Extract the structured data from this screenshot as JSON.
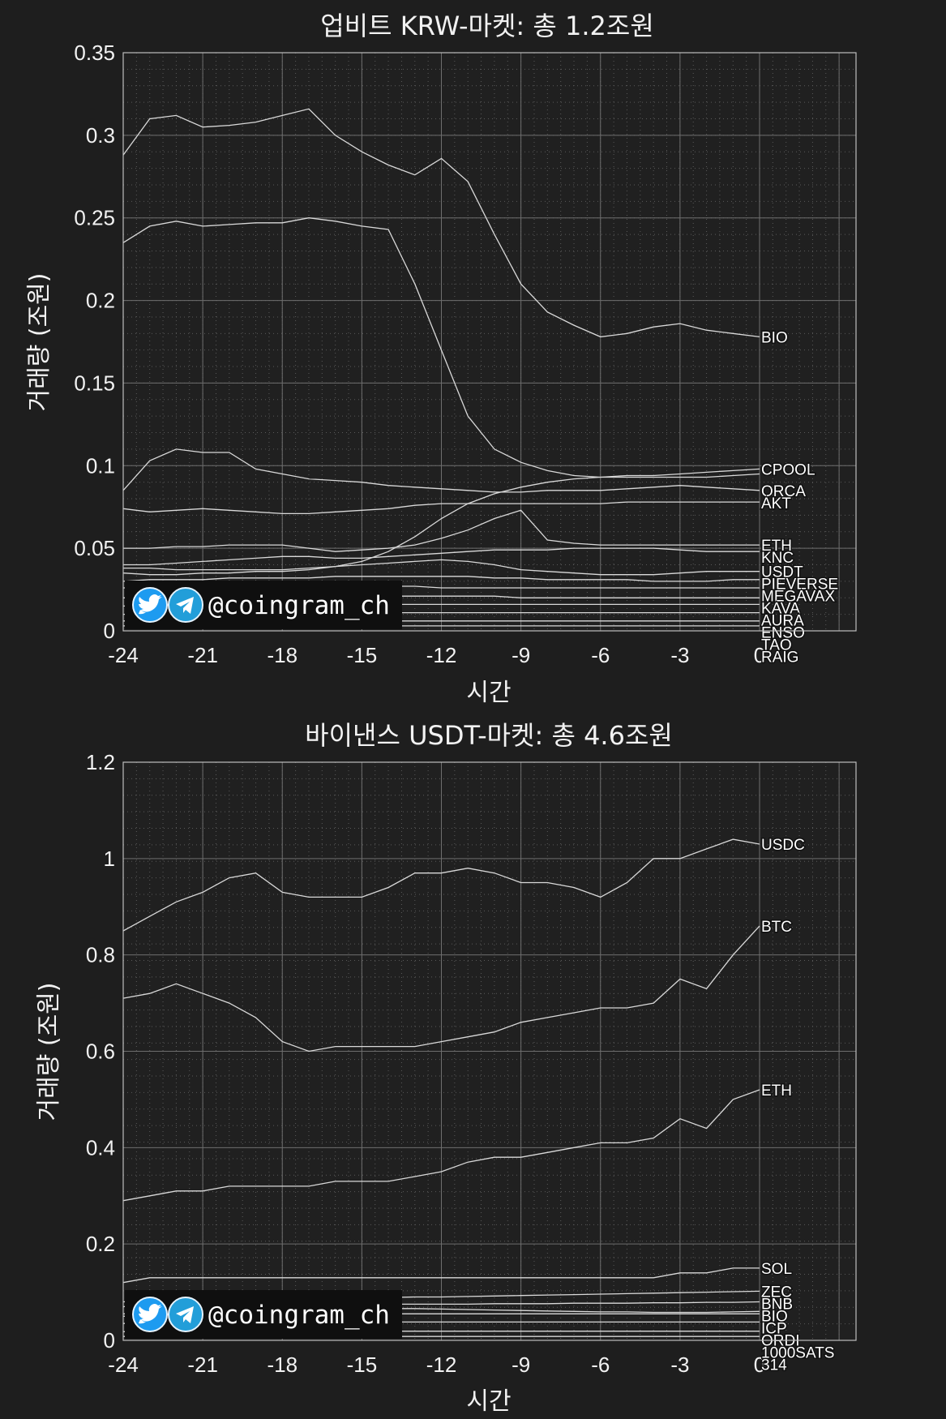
{
  "watermark": {
    "handle": "@coingram_ch",
    "icons": [
      "twitter-icon",
      "telegram-icon"
    ]
  },
  "colors": {
    "background": "#1e1e1e",
    "plot_bg": "#202020",
    "line": "#d9d9d9",
    "twitter": "#1d9bf0",
    "telegram": "#229ed9"
  },
  "chart_data": [
    {
      "type": "line",
      "title": "업비트 KRW-마켓: 총 1.2조원",
      "xlabel": "시간",
      "ylabel": "거래량 (조원)",
      "xlim": [
        -24,
        0
      ],
      "ylim": [
        0,
        0.35
      ],
      "xticks": [
        "-24",
        "-21",
        "-18",
        "-15",
        "-12",
        "-9",
        "-6",
        "-3",
        "0"
      ],
      "yticks": [
        "0",
        "0.05",
        "0.1",
        "0.15",
        "0.2",
        "0.25",
        "0.3",
        "0.35"
      ],
      "grid": true,
      "x": [
        -24,
        -23,
        -22,
        -21,
        -20,
        -19,
        -18,
        -17,
        -16,
        -15,
        -14,
        -13,
        -12,
        -11,
        -10,
        -9,
        -8,
        -7,
        -6,
        -5,
        -4,
        -3,
        -2,
        -1,
        0
      ],
      "series": [
        {
          "name": "BIO",
          "values": [
            0.288,
            0.31,
            0.312,
            0.305,
            0.306,
            0.308,
            0.312,
            0.316,
            0.3,
            0.29,
            0.282,
            0.276,
            0.286,
            0.272,
            0.24,
            0.21,
            0.193,
            0.185,
            0.178,
            0.18,
            0.184,
            0.186,
            0.182,
            0.18,
            0.178
          ]
        },
        {
          "name": "",
          "values": [
            0.235,
            0.245,
            0.248,
            0.245,
            0.246,
            0.247,
            0.247,
            0.25,
            0.248,
            0.245,
            0.243,
            0.21,
            0.17,
            0.13,
            0.11,
            0.102,
            0.097,
            0.094,
            0.093,
            0.093,
            0.093,
            0.093,
            0.093,
            0.094,
            0.095
          ]
        },
        {
          "name": "CPOOL",
          "values": [
            0.035,
            0.034,
            0.034,
            0.035,
            0.035,
            0.036,
            0.036,
            0.037,
            0.039,
            0.042,
            0.048,
            0.057,
            0.068,
            0.077,
            0.083,
            0.087,
            0.09,
            0.092,
            0.093,
            0.094,
            0.094,
            0.095,
            0.096,
            0.097,
            0.098
          ]
        },
        {
          "name": "ORCA",
          "values": [
            0.085,
            0.103,
            0.11,
            0.108,
            0.108,
            0.098,
            0.095,
            0.092,
            0.091,
            0.09,
            0.088,
            0.087,
            0.086,
            0.085,
            0.084,
            0.084,
            0.085,
            0.085,
            0.085,
            0.086,
            0.087,
            0.088,
            0.087,
            0.086,
            0.085
          ]
        },
        {
          "name": "AKT",
          "values": [
            0.074,
            0.072,
            0.073,
            0.074,
            0.073,
            0.072,
            0.071,
            0.071,
            0.072,
            0.073,
            0.074,
            0.076,
            0.077,
            0.077,
            0.077,
            0.077,
            0.077,
            0.077,
            0.077,
            0.078,
            0.078,
            0.078,
            0.078,
            0.078,
            0.078
          ]
        },
        {
          "name": "ETH",
          "values": [
            0.05,
            0.05,
            0.051,
            0.051,
            0.052,
            0.052,
            0.052,
            0.05,
            0.048,
            0.049,
            0.05,
            0.052,
            0.056,
            0.061,
            0.068,
            0.073,
            0.055,
            0.053,
            0.052,
            0.052,
            0.052,
            0.052,
            0.052,
            0.052,
            0.052
          ]
        },
        {
          "name": "KNC",
          "values": [
            0.04,
            0.04,
            0.041,
            0.042,
            0.043,
            0.044,
            0.045,
            0.045,
            0.044,
            0.044,
            0.045,
            0.046,
            0.047,
            0.048,
            0.049,
            0.049,
            0.049,
            0.05,
            0.05,
            0.05,
            0.05,
            0.049,
            0.048,
            0.048,
            0.048
          ]
        },
        {
          "name": "USDT",
          "values": [
            0.038,
            0.038,
            0.037,
            0.037,
            0.037,
            0.037,
            0.037,
            0.038,
            0.039,
            0.04,
            0.041,
            0.042,
            0.043,
            0.042,
            0.04,
            0.037,
            0.036,
            0.035,
            0.034,
            0.034,
            0.034,
            0.035,
            0.036,
            0.036,
            0.036
          ]
        },
        {
          "name": "PIEVERSE",
          "values": [
            0.03,
            0.031,
            0.031,
            0.031,
            0.032,
            0.032,
            0.032,
            0.032,
            0.033,
            0.033,
            0.033,
            0.033,
            0.033,
            0.033,
            0.032,
            0.032,
            0.031,
            0.031,
            0.031,
            0.031,
            0.03,
            0.03,
            0.03,
            0.031,
            0.031
          ]
        },
        {
          "name": "MEGAVAX",
          "values": [
            0.026,
            0.026,
            0.026,
            0.027,
            0.027,
            0.027,
            0.027,
            0.027,
            0.027,
            0.027,
            0.027,
            0.027,
            0.026,
            0.026,
            0.026,
            0.026,
            0.026,
            0.026,
            0.026,
            0.026,
            0.026,
            0.026,
            0.026,
            0.026,
            0.026
          ]
        },
        {
          "name": "KAVA",
          "values": [
            0.02,
            0.02,
            0.021,
            0.021,
            0.021,
            0.021,
            0.021,
            0.021,
            0.021,
            0.021,
            0.021,
            0.021,
            0.021,
            0.021,
            0.021,
            0.02,
            0.02,
            0.02,
            0.02,
            0.02,
            0.02,
            0.02,
            0.02,
            0.02,
            0.02
          ]
        },
        {
          "name": "AURA",
          "values": [
            0.015,
            0.015,
            0.015,
            0.016,
            0.016,
            0.016,
            0.016,
            0.016,
            0.016,
            0.016,
            0.016,
            0.016,
            0.016,
            0.016,
            0.016,
            0.016,
            0.016,
            0.016,
            0.016,
            0.016,
            0.016,
            0.016,
            0.016,
            0.016,
            0.016
          ]
        },
        {
          "name": "ENSO",
          "values": [
            0.01,
            0.01,
            0.011,
            0.011,
            0.011,
            0.011,
            0.011,
            0.011,
            0.011,
            0.011,
            0.011,
            0.011,
            0.011,
            0.011,
            0.011,
            0.011,
            0.011,
            0.011,
            0.011,
            0.011,
            0.011,
            0.011,
            0.011,
            0.011,
            0.011
          ]
        },
        {
          "name": "TAO",
          "values": [
            0.006,
            0.006,
            0.006,
            0.006,
            0.006,
            0.006,
            0.006,
            0.006,
            0.006,
            0.006,
            0.006,
            0.006,
            0.006,
            0.006,
            0.006,
            0.006,
            0.006,
            0.006,
            0.006,
            0.006,
            0.006,
            0.006,
            0.006,
            0.006,
            0.006
          ]
        },
        {
          "name": "RAIG",
          "values": [
            0.003,
            0.003,
            0.003,
            0.003,
            0.003,
            0.003,
            0.003,
            0.003,
            0.003,
            0.003,
            0.003,
            0.003,
            0.003,
            0.003,
            0.003,
            0.003,
            0.003,
            0.003,
            0.003,
            0.003,
            0.003,
            0.003,
            0.003,
            0.003,
            0.003
          ]
        }
      ]
    },
    {
      "type": "line",
      "title": "바이낸스 USDT-마켓: 총 4.6조원",
      "xlabel": "시간",
      "ylabel": "거래량 (조원)",
      "xlim": [
        -24,
        0
      ],
      "ylim": [
        0,
        1.2
      ],
      "xticks": [
        "-24",
        "-21",
        "-18",
        "-15",
        "-12",
        "-9",
        "-6",
        "-3",
        "0"
      ],
      "yticks": [
        "0",
        "0.2",
        "0.4",
        "0.6",
        "0.8",
        "1",
        "1.2"
      ],
      "grid": true,
      "x": [
        -24,
        -23,
        -22,
        -21,
        -20,
        -19,
        -18,
        -17,
        -16,
        -15,
        -14,
        -13,
        -12,
        -11,
        -10,
        -9,
        -8,
        -7,
        -6,
        -5,
        -4,
        -3,
        -2,
        -1,
        0
      ],
      "series": [
        {
          "name": "USDC",
          "values": [
            0.85,
            0.88,
            0.91,
            0.93,
            0.96,
            0.97,
            0.93,
            0.92,
            0.92,
            0.92,
            0.94,
            0.97,
            0.97,
            0.98,
            0.97,
            0.95,
            0.95,
            0.94,
            0.92,
            0.95,
            1.0,
            1.0,
            1.02,
            1.04,
            1.03
          ]
        },
        {
          "name": "BTC",
          "values": [
            0.71,
            0.72,
            0.74,
            0.72,
            0.7,
            0.67,
            0.62,
            0.6,
            0.61,
            0.61,
            0.61,
            0.61,
            0.62,
            0.63,
            0.64,
            0.66,
            0.67,
            0.68,
            0.69,
            0.69,
            0.7,
            0.75,
            0.73,
            0.8,
            0.86
          ]
        },
        {
          "name": "ETH",
          "values": [
            0.29,
            0.3,
            0.31,
            0.31,
            0.32,
            0.32,
            0.32,
            0.32,
            0.33,
            0.33,
            0.33,
            0.34,
            0.35,
            0.37,
            0.38,
            0.38,
            0.39,
            0.4,
            0.41,
            0.41,
            0.42,
            0.46,
            0.44,
            0.5,
            0.52
          ]
        },
        {
          "name": "SOL",
          "values": [
            0.12,
            0.13,
            0.13,
            0.13,
            0.13,
            0.13,
            0.13,
            0.13,
            0.13,
            0.13,
            0.13,
            0.13,
            0.13,
            0.13,
            0.13,
            0.13,
            0.13,
            0.13,
            0.13,
            0.13,
            0.13,
            0.14,
            0.14,
            0.15,
            0.15
          ]
        },
        {
          "name": "ZEC",
          "values": [
            0.08,
            0.082,
            0.083,
            0.084,
            0.085,
            0.086,
            0.086,
            0.087,
            0.088,
            0.088,
            0.089,
            0.09,
            0.09,
            0.091,
            0.092,
            0.093,
            0.094,
            0.095,
            0.096,
            0.097,
            0.098,
            0.099,
            0.1,
            0.101,
            0.102
          ]
        },
        {
          "name": "BNB",
          "values": [
            0.07,
            0.071,
            0.072,
            0.072,
            0.073,
            0.073,
            0.073,
            0.074,
            0.074,
            0.074,
            0.075,
            0.075,
            0.075,
            0.075,
            0.076,
            0.076,
            0.076,
            0.077,
            0.077,
            0.077,
            0.078,
            0.078,
            0.079,
            0.079,
            0.08
          ]
        },
        {
          "name": "BIO",
          "values": [
            0.05,
            0.052,
            0.055,
            0.058,
            0.06,
            0.062,
            0.064,
            0.065,
            0.066,
            0.066,
            0.066,
            0.066,
            0.065,
            0.064,
            0.063,
            0.062,
            0.061,
            0.06,
            0.059,
            0.059,
            0.058,
            0.058,
            0.058,
            0.059,
            0.06
          ]
        },
        {
          "name": "ICP",
          "values": [
            0.055,
            0.055,
            0.055,
            0.055,
            0.055,
            0.055,
            0.055,
            0.055,
            0.055,
            0.055,
            0.055,
            0.055,
            0.055,
            0.055,
            0.055,
            0.055,
            0.055,
            0.055,
            0.055,
            0.055,
            0.055,
            0.055,
            0.055,
            0.055,
            0.055
          ]
        },
        {
          "name": "ORDI",
          "values": [
            0.035,
            0.036,
            0.036,
            0.037,
            0.037,
            0.037,
            0.038,
            0.038,
            0.038,
            0.038,
            0.038,
            0.038,
            0.038,
            0.038,
            0.038,
            0.038,
            0.038,
            0.038,
            0.038,
            0.038,
            0.038,
            0.038,
            0.038,
            0.038,
            0.038
          ]
        },
        {
          "name": "1000SATS",
          "values": [
            0.018,
            0.018,
            0.019,
            0.019,
            0.019,
            0.019,
            0.019,
            0.019,
            0.019,
            0.019,
            0.019,
            0.019,
            0.019,
            0.019,
            0.019,
            0.019,
            0.019,
            0.019,
            0.019,
            0.019,
            0.019,
            0.019,
            0.019,
            0.019,
            0.019
          ]
        },
        {
          "name": "314",
          "values": [
            0.008,
            0.008,
            0.008,
            0.008,
            0.008,
            0.008,
            0.008,
            0.008,
            0.008,
            0.008,
            0.008,
            0.008,
            0.008,
            0.008,
            0.008,
            0.008,
            0.008,
            0.008,
            0.008,
            0.008,
            0.008,
            0.008,
            0.008,
            0.008,
            0.008
          ]
        }
      ]
    }
  ]
}
